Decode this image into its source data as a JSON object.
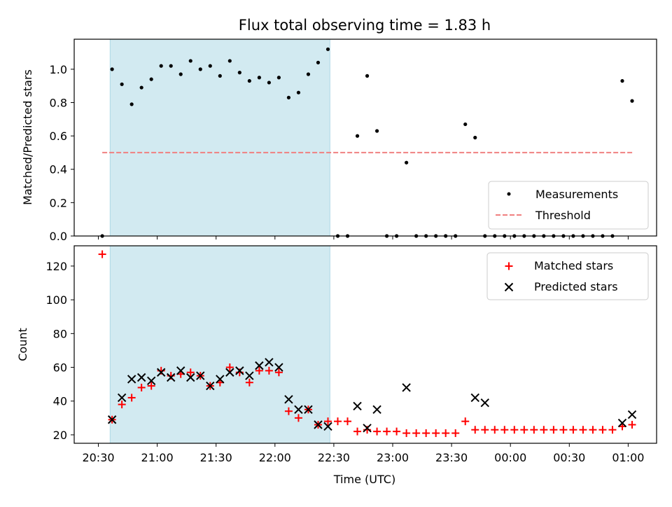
{
  "title": "Flux total observing time = 1.83 h",
  "colors": {
    "shade": "#add8e6",
    "measurement": "#000000",
    "threshold": "#f08080",
    "matched": "#ff0000",
    "predicted": "#000000"
  },
  "chart_data": [
    {
      "type": "scatter",
      "ylabel": "Matched/Predicted stars",
      "ylim": [
        0,
        1.18
      ],
      "yticks": [
        "0.0",
        "0.2",
        "0.4",
        "0.6",
        "0.8",
        "1.0"
      ],
      "shaded_region": [
        "20:36",
        "22:28"
      ],
      "legend": {
        "placement": "bottom-right",
        "entries": [
          "Measurements",
          "Threshold"
        ]
      },
      "threshold": {
        "name": "Threshold",
        "value": 0.5,
        "x_range": [
          "20:32",
          "01:03"
        ]
      },
      "series": [
        {
          "name": "Measurements",
          "x": [
            "20:32",
            "20:37",
            "20:42",
            "20:47",
            "20:52",
            "20:57",
            "21:02",
            "21:07",
            "21:12",
            "21:17",
            "21:22",
            "21:27",
            "21:32",
            "21:37",
            "21:42",
            "21:47",
            "21:52",
            "21:57",
            "22:02",
            "22:07",
            "22:12",
            "22:17",
            "22:22",
            "22:27",
            "22:32",
            "22:37",
            "22:42",
            "22:47",
            "22:52",
            "22:57",
            "23:02",
            "23:07",
            "23:12",
            "23:17",
            "23:22",
            "23:27",
            "23:32",
            "23:37",
            "23:42",
            "23:47",
            "23:52",
            "23:57",
            "00:02",
            "00:07",
            "00:12",
            "00:17",
            "00:22",
            "00:27",
            "00:32",
            "00:37",
            "00:42",
            "00:47",
            "00:52",
            "00:57",
            "01:02"
          ],
          "y": [
            0.0,
            1.0,
            0.91,
            0.79,
            0.89,
            0.94,
            1.02,
            1.02,
            0.97,
            1.05,
            1.0,
            1.02,
            0.96,
            1.05,
            0.98,
            0.93,
            0.95,
            0.92,
            0.95,
            0.83,
            0.86,
            0.97,
            1.04,
            1.12,
            0.0,
            0.0,
            0.6,
            0.96,
            0.63,
            0.0,
            0.0,
            0.44,
            0.0,
            0.0,
            0.0,
            0.0,
            0.0,
            0.67,
            0.59,
            0.0,
            0.0,
            0.0,
            0.0,
            0.0,
            0.0,
            0.0,
            0.0,
            0.0,
            0.0,
            0.0,
            0.0,
            0.0,
            0.0,
            0.93,
            0.81
          ]
        }
      ]
    },
    {
      "type": "scatter",
      "xlabel": "Time (UTC)",
      "ylabel": "Count",
      "ylim": [
        15,
        132
      ],
      "yticks": [
        "20",
        "40",
        "60",
        "80",
        "100",
        "120"
      ],
      "xticks": [
        "20:30",
        "21:00",
        "21:30",
        "22:00",
        "22:30",
        "23:00",
        "23:30",
        "00:00",
        "00:30",
        "01:00"
      ],
      "shaded_region": [
        "20:36",
        "22:28"
      ],
      "legend": {
        "placement": "top-right",
        "entries": [
          "Matched stars",
          "Predicted stars"
        ]
      },
      "series": [
        {
          "name": "Matched stars",
          "x": [
            "20:32",
            "20:37",
            "20:42",
            "20:47",
            "20:52",
            "20:57",
            "21:02",
            "21:07",
            "21:12",
            "21:17",
            "21:22",
            "21:27",
            "21:32",
            "21:37",
            "21:42",
            "21:47",
            "21:52",
            "21:57",
            "22:02",
            "22:07",
            "22:12",
            "22:17",
            "22:22",
            "22:27",
            "22:32",
            "22:37",
            "22:42",
            "22:47",
            "22:52",
            "22:57",
            "23:02",
            "23:07",
            "23:12",
            "23:17",
            "23:22",
            "23:27",
            "23:32",
            "23:37",
            "23:42",
            "23:47",
            "23:52",
            "23:57",
            "00:02",
            "00:07",
            "00:12",
            "00:17",
            "00:22",
            "00:27",
            "00:32",
            "00:37",
            "00:42",
            "00:47",
            "00:52",
            "00:57",
            "01:02"
          ],
          "y": [
            127,
            29,
            38,
            42,
            48,
            49,
            58,
            55,
            56,
            57,
            55,
            49,
            51,
            60,
            57,
            51,
            58,
            58,
            57,
            34,
            30,
            35,
            26,
            28,
            28,
            28,
            22,
            23,
            22,
            22,
            22,
            21,
            21,
            21,
            21,
            21,
            21,
            28,
            23,
            23,
            23,
            23,
            23,
            23,
            23,
            23,
            23,
            23,
            23,
            23,
            23,
            23,
            23,
            25,
            26
          ]
        },
        {
          "name": "Predicted stars",
          "x": [
            "20:37",
            "20:42",
            "20:47",
            "20:52",
            "20:57",
            "21:02",
            "21:07",
            "21:12",
            "21:17",
            "21:22",
            "21:27",
            "21:32",
            "21:37",
            "21:42",
            "21:47",
            "21:52",
            "21:57",
            "22:02",
            "22:07",
            "22:12",
            "22:17",
            "22:22",
            "22:27",
            "22:42",
            "22:47",
            "22:52",
            "23:07",
            "23:42",
            "23:47",
            "00:57",
            "01:02"
          ],
          "y": [
            29,
            42,
            53,
            54,
            52,
            57,
            54,
            58,
            54,
            55,
            49,
            53,
            57,
            58,
            55,
            61,
            63,
            60,
            41,
            35,
            35,
            26,
            25,
            37,
            24,
            35,
            48,
            42,
            39,
            27,
            32
          ]
        }
      ]
    }
  ]
}
